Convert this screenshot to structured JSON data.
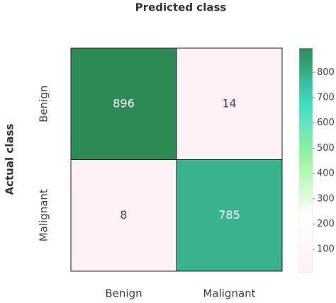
{
  "chart_data": {
    "type": "heatmap",
    "title": "Predicted class",
    "y_label": "Actual class",
    "x_categories": [
      "Benign",
      "Malignant"
    ],
    "y_categories": [
      "Benign",
      "Malignant"
    ],
    "values": [
      [
        896,
        14
      ],
      [
        8,
        785
      ]
    ],
    "zlim": [
      8,
      896
    ],
    "zticks": [
      100,
      200,
      300,
      400,
      500,
      600,
      700,
      800
    ],
    "colorscale": [
      "#fff2f6",
      "#ffffff",
      "#9ef59e",
      "#40dcc4",
      "#2e8b57"
    ],
    "colorbar": true
  }
}
